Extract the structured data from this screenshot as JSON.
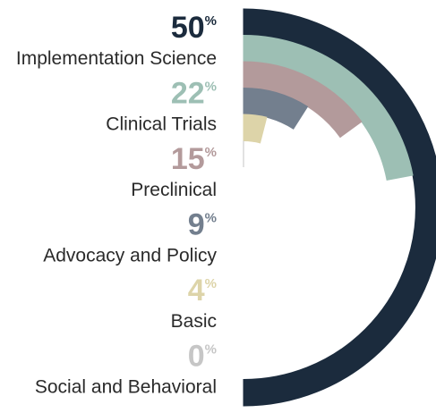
{
  "chart_data": {
    "type": "radial-bar",
    "categories": [
      "Implementation Science",
      "Clinical Trials",
      "Preclinical",
      "Advocacy and Policy",
      "Basic",
      "Social and Behavioral"
    ],
    "values": [
      50,
      22,
      15,
      9,
      4,
      0
    ],
    "unit": "%",
    "colors": [
      "#1b2b3d",
      "#9dbfb4",
      "#b39a9b",
      "#737f8e",
      "#ddd4a9",
      "#c6c6c6"
    ],
    "ylim": [
      0,
      100
    ]
  }
}
